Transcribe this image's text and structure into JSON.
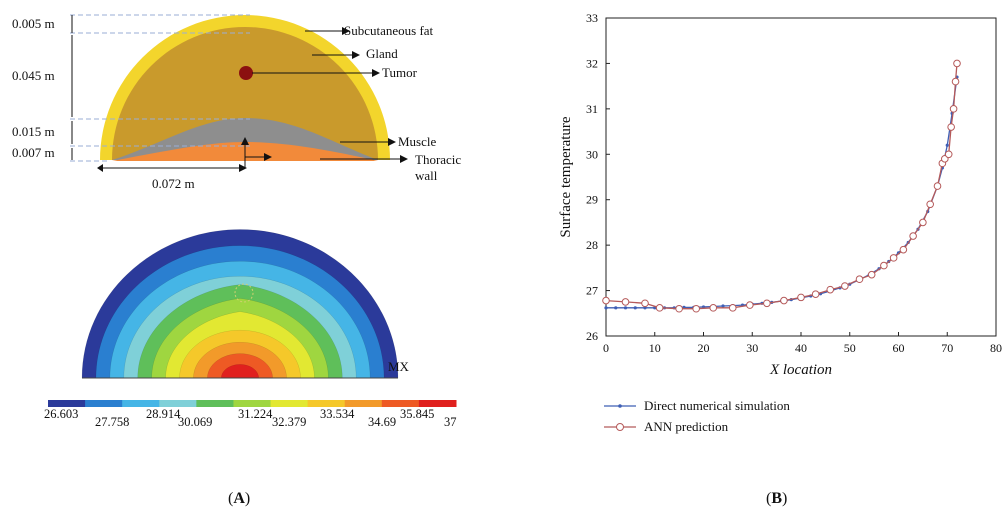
{
  "panel_a": {
    "caption_open": "(",
    "caption_letter": "A",
    "caption_close": ")",
    "labels": {
      "subcutaneous_fat": "Subcutaneous fat",
      "gland": "Gland",
      "tumor": "Tumor",
      "muscle": "Muscle",
      "thoracic_wall_1": "Thoracic",
      "thoracic_wall_2": "wall"
    },
    "dimensions": [
      "0.005 m",
      "0.045 m",
      "0.015 m",
      "0.007 m",
      "0.072 m"
    ],
    "mx_label": "MX",
    "colorbar": {
      "ticks_top": [
        "26.603",
        "28.914",
        "31.224",
        "33.534",
        "35.845"
      ],
      "ticks_bottom": [
        "27.758",
        "30.069",
        "32.379",
        "34.69",
        "37"
      ],
      "colors": [
        "#2b3a9a",
        "#2a7fd0",
        "#45b5e6",
        "#7fd0d8",
        "#5fbf5a",
        "#9fd640",
        "#e2e832",
        "#f5c82a",
        "#f29a2a",
        "#ee5a24",
        "#e0201e"
      ]
    },
    "colors": {
      "fat": "#f3d52c",
      "gland": "#c99a2c",
      "muscle": "#8e8e8e",
      "thoracic": "#f28a3a",
      "tumor": "#8b1010"
    }
  },
  "panel_b": {
    "caption_open": "(",
    "caption_letter": "B",
    "caption_close": ")",
    "colors": {
      "dns": "#3f5fb5",
      "ann": "#b55a5a"
    }
  },
  "chart_data": {
    "type": "line",
    "title": "",
    "xlabel": "X location",
    "ylabel": "Surface temperature",
    "xlim": [
      0,
      80
    ],
    "ylim": [
      26,
      33
    ],
    "xticks": [
      "0",
      "10",
      "20",
      "30",
      "40",
      "50",
      "60",
      "70",
      "80"
    ],
    "yticks": [
      "26",
      "27",
      "28",
      "29",
      "30",
      "31",
      "32",
      "33"
    ],
    "legend_position": "bottom-left",
    "series": [
      {
        "name": "Direct numerical simulation",
        "marker": "dot",
        "x": [
          0,
          2,
          4,
          6,
          8,
          10,
          12,
          14,
          16,
          18,
          20,
          22,
          24,
          26,
          28,
          30,
          32,
          34,
          36,
          38,
          40,
          42,
          44,
          46,
          48,
          50,
          52,
          54,
          56,
          58,
          60,
          62,
          64,
          66,
          68,
          69,
          70,
          71,
          72
        ],
        "y": [
          26.62,
          26.62,
          26.62,
          26.62,
          26.62,
          26.62,
          26.62,
          26.62,
          26.63,
          26.63,
          26.64,
          26.65,
          26.66,
          26.67,
          26.68,
          26.7,
          26.72,
          26.74,
          26.77,
          26.8,
          26.84,
          26.88,
          26.93,
          26.99,
          27.06,
          27.14,
          27.24,
          27.35,
          27.48,
          27.64,
          27.83,
          28.06,
          28.35,
          28.74,
          29.3,
          29.7,
          30.2,
          30.9,
          31.7
        ]
      },
      {
        "name": "ANN prediction",
        "marker": "circle",
        "x": [
          0,
          4,
          8,
          11,
          15,
          18.5,
          22,
          26,
          29.5,
          33,
          36.5,
          40,
          43,
          46,
          49,
          52,
          54.5,
          57,
          59,
          61,
          63,
          65,
          66.5,
          68,
          69,
          69.5,
          70.3,
          70.8,
          71.3,
          71.7,
          72
        ],
        "y": [
          26.78,
          26.75,
          26.72,
          26.62,
          26.6,
          26.6,
          26.62,
          26.62,
          26.68,
          26.72,
          26.78,
          26.85,
          26.92,
          27.02,
          27.1,
          27.25,
          27.35,
          27.55,
          27.72,
          27.9,
          28.2,
          28.5,
          28.9,
          29.3,
          29.8,
          29.9,
          30.0,
          30.6,
          31.0,
          31.6,
          32.0
        ]
      }
    ]
  }
}
